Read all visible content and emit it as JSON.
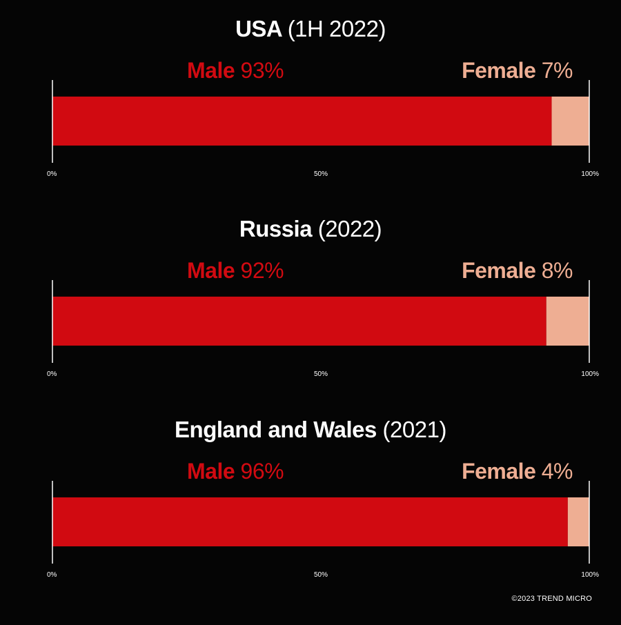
{
  "colors": {
    "background": "#050505",
    "male": "#d10a11",
    "female": "#eeae93",
    "axis": "#ffffff",
    "text": "#ffffff"
  },
  "chart_data": [
    {
      "type": "bar",
      "orientation": "horizontal-stacked",
      "title": "USA",
      "subtitle": "(1H 2022)",
      "series": [
        {
          "name": "Male",
          "value": 93,
          "label": "93%"
        },
        {
          "name": "Female",
          "value": 7,
          "label": "7%"
        }
      ],
      "xlim": [
        0,
        100
      ],
      "ticks": [
        {
          "value": 0,
          "label": "0%"
        },
        {
          "value": 50,
          "label": "50%"
        },
        {
          "value": 100,
          "label": "100%"
        }
      ],
      "grid": false
    },
    {
      "type": "bar",
      "orientation": "horizontal-stacked",
      "title": "Russia",
      "subtitle": "(2022)",
      "series": [
        {
          "name": "Male",
          "value": 92,
          "label": "92%"
        },
        {
          "name": "Female",
          "value": 8,
          "label": "8%"
        }
      ],
      "xlim": [
        0,
        100
      ],
      "ticks": [
        {
          "value": 0,
          "label": "0%"
        },
        {
          "value": 50,
          "label": "50%"
        },
        {
          "value": 100,
          "label": "100%"
        }
      ],
      "grid": false
    },
    {
      "type": "bar",
      "orientation": "horizontal-stacked",
      "title": "England and Wales",
      "subtitle": "(2021)",
      "series": [
        {
          "name": "Male",
          "value": 96,
          "label": "96%"
        },
        {
          "name": "Female",
          "value": 4,
          "label": "4%"
        }
      ],
      "xlim": [
        0,
        100
      ],
      "ticks": [
        {
          "value": 0,
          "label": "0%"
        },
        {
          "value": 50,
          "label": "50%"
        },
        {
          "value": 100,
          "label": "100%"
        }
      ],
      "grid": false
    }
  ],
  "footer": {
    "copyright": "©2023 TREND MICRO"
  }
}
